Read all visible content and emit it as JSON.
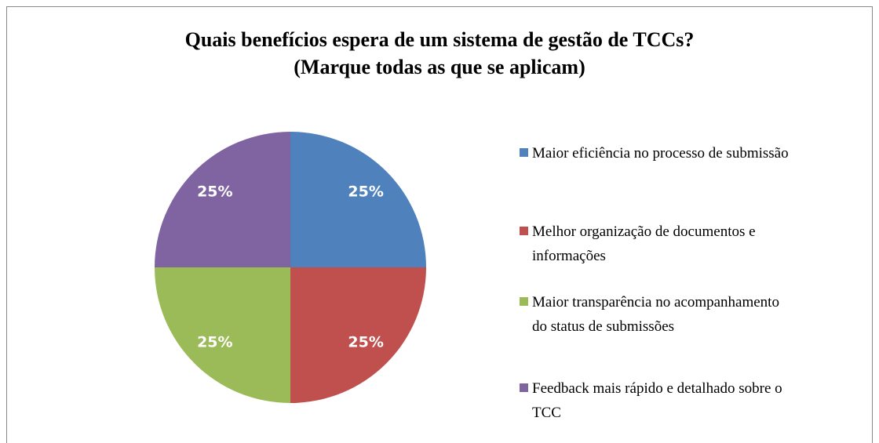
{
  "chart_data": {
    "type": "pie",
    "title": [
      "Quais benefícios espera de um sistema de gestão de TCCs?",
      "(Marque todas as que se aplicam)"
    ],
    "categories": [
      "Maior eficiência no processo de submissão",
      "Melhor organização de documentos e informações",
      "Maior transparência no acompanhamento do status de submissões",
      "Feedback mais rápido e detalhado sobre o TCC"
    ],
    "values": [
      25,
      25,
      25,
      25
    ],
    "value_labels": [
      "25%",
      "25%",
      "25%",
      "25%"
    ],
    "colors": [
      "#4f81bd",
      "#c0504d",
      "#9bbb59",
      "#8064a2"
    ],
    "legend": "right"
  }
}
